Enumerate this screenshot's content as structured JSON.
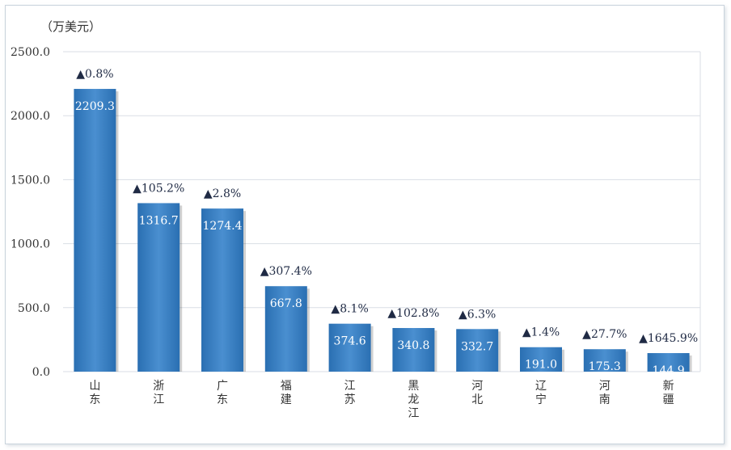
{
  "chart_data": {
    "type": "bar",
    "unit_label": "（万美元）",
    "categories": [
      "山东",
      "浙江",
      "广东",
      "福建",
      "江苏",
      "黑龙江",
      "河北",
      "辽宁",
      "河南",
      "新疆"
    ],
    "values": [
      2209.3,
      1316.7,
      1274.4,
      667.8,
      374.6,
      340.8,
      332.7,
      191.0,
      175.3,
      144.9
    ],
    "value_labels": [
      "2209.3",
      "1316.7",
      "1274.4",
      "667.8",
      "374.6",
      "340.8",
      "332.7",
      "191.0",
      "175.3",
      "144.9"
    ],
    "growth_labels": [
      "▲0.8%",
      "▲105.2%",
      "▲2.8%",
      "▲307.4%",
      "▲8.1%",
      "▲102.8%",
      "▲6.3%",
      "▲1.4%",
      "▲27.7%",
      "▲1645.9%"
    ],
    "ylim": [
      0,
      2500
    ],
    "yticks": [
      "0.0",
      "500.0",
      "1000.0",
      "1500.0",
      "2000.0",
      "2500.0"
    ],
    "grid": true,
    "colors": {
      "bar": "#2a6fb2",
      "bar_top": "#4a8fd0",
      "grid": "#d9dee5",
      "growth": "#1f2a44"
    }
  }
}
